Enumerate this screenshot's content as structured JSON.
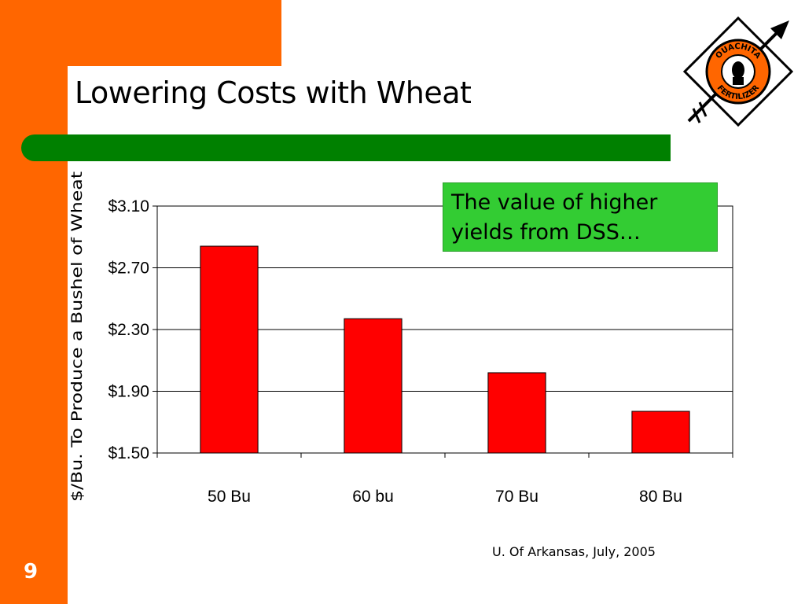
{
  "slide": {
    "title": "Lowering Costs with Wheat",
    "number": "9",
    "source": "U. Of Arkansas, July, 2005",
    "callout": "The value of higher yields from DSS…",
    "logo_text_top": "OUACHITA",
    "logo_text_bottom": "FERTILIZER"
  },
  "colors": {
    "orange": "#ff6600",
    "green_bar": "#008000",
    "callout_green": "#33cc33",
    "bar_red": "#ff0000"
  },
  "chart_data": {
    "type": "bar",
    "categories": [
      "50 Bu",
      "60 bu",
      "70 Bu",
      "80 Bu"
    ],
    "values": [
      2.84,
      2.37,
      2.02,
      1.77
    ],
    "ylabel": "$/Bu. To Produce a Bushel of Wheat",
    "xlabel": "",
    "ylim": [
      1.5,
      3.1
    ],
    "yticks": [
      "$1.50",
      "$1.90",
      "$2.30",
      "$2.70",
      "$3.10"
    ],
    "ytick_values": [
      1.5,
      1.9,
      2.3,
      2.7,
      3.1
    ],
    "grid": true,
    "legend": "none"
  }
}
